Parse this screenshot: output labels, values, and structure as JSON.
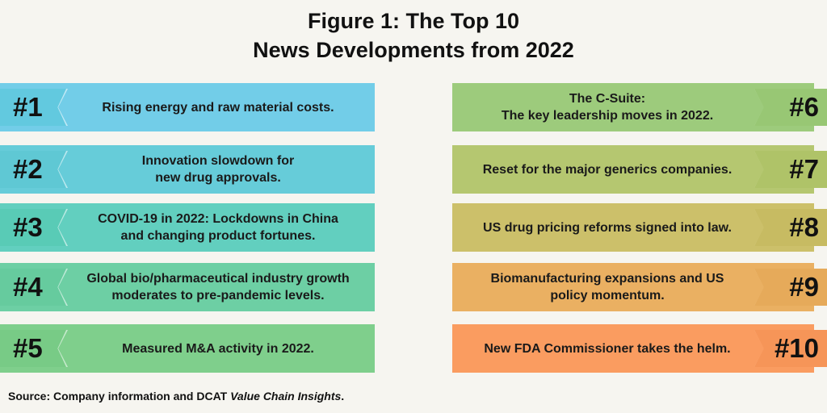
{
  "title": {
    "line1": "Figure 1: The Top 10",
    "line2": "News Developments from 2022"
  },
  "items": [
    {
      "rank": "#1",
      "text_lines": [
        "Rising energy and raw material costs."
      ],
      "color": "#72cde8",
      "tab_color": "#62c9df"
    },
    {
      "rank": "#2",
      "text_lines": [
        "Innovation slowdown for",
        "new drug approvals."
      ],
      "color": "#66ccd9",
      "tab_color": "#5fc8d4"
    },
    {
      "rank": "#3",
      "text_lines": [
        "COVID-19 in 2022: Lockdowns in China",
        "and changing product fortunes."
      ],
      "color": "#62cfbf",
      "tab_color": "#59cbb6"
    },
    {
      "rank": "#4",
      "text_lines": [
        "Global bio/pharmaceutical industry growth",
        "moderates to pre-pandemic levels."
      ],
      "color": "#6dcfa4",
      "tab_color": "#66cb9e"
    },
    {
      "rank": "#5",
      "text_lines": [
        "Measured M&A activity in 2022."
      ],
      "color": "#7fcf8c",
      "tab_color": "#78cb86"
    },
    {
      "rank": "#6",
      "text_lines": [
        "The C-Suite:",
        "The key leadership moves in 2022."
      ],
      "color": "#9dcb7c",
      "tab_color": "#98c774"
    },
    {
      "rank": "#7",
      "text_lines": [
        "Reset for the major generics companies."
      ],
      "color": "#b5c770",
      "tab_color": "#afc368"
    },
    {
      "rank": "#8",
      "text_lines": [
        "US drug pricing reforms signed into law."
      ],
      "color": "#ccc06a",
      "tab_color": "#c7bb62"
    },
    {
      "rank": "#9",
      "text_lines": [
        "Biomanufacturing expansions and US",
        "policy momentum."
      ],
      "color": "#eab062",
      "tab_color": "#e6aa5a"
    },
    {
      "rank": "#10",
      "text_lines": [
        "New FDA Commissioner takes the helm."
      ],
      "color": "#fa9c60",
      "tab_color": "#f69558"
    }
  ],
  "source": {
    "prefix": "Source: Company information and DCAT ",
    "italic": "Value Chain Insights",
    "suffix": "."
  }
}
